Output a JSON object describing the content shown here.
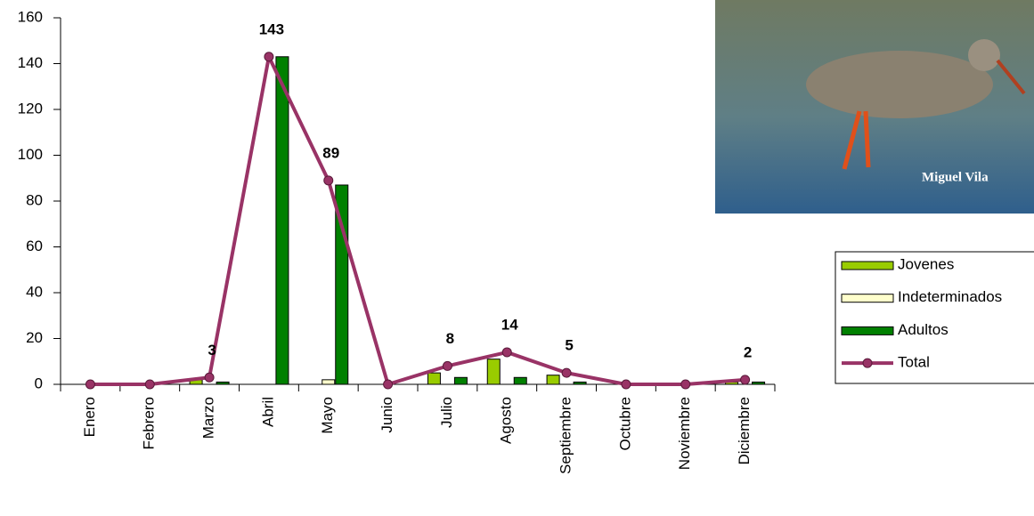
{
  "chart_data": {
    "type": "bar_line",
    "categories": [
      "Enero",
      "Febrero",
      "Marzo",
      "Abril",
      "Mayo",
      "Junio",
      "Julio",
      "Agosto",
      "Septiembre",
      "Octubre",
      "Noviembre",
      "Diciembre"
    ],
    "series": [
      {
        "name": "Jovenes",
        "color": "#99cc00",
        "kind": "bar",
        "values": [
          0,
          0,
          2,
          0,
          0,
          0,
          5,
          11,
          4,
          0,
          0,
          1
        ]
      },
      {
        "name": "Indeterminados",
        "color": "#ffffcc",
        "kind": "bar",
        "values": [
          0,
          0,
          0,
          0,
          2,
          0,
          0,
          0,
          0,
          0,
          0,
          0
        ]
      },
      {
        "name": "Adultos",
        "color": "#008000",
        "kind": "bar",
        "values": [
          0,
          0,
          1,
          143,
          87,
          0,
          3,
          3,
          1,
          0,
          0,
          1
        ]
      },
      {
        "name": "Total",
        "color": "#993366",
        "kind": "line",
        "values": [
          0,
          0,
          3,
          143,
          89,
          0,
          8,
          14,
          5,
          0,
          0,
          2
        ]
      }
    ],
    "ylim": [
      0,
      160
    ],
    "yticks": [
      0,
      20,
      40,
      60,
      80,
      100,
      120,
      140,
      160
    ],
    "legend": "right",
    "annotations": [
      "Miguel Vila"
    ]
  }
}
